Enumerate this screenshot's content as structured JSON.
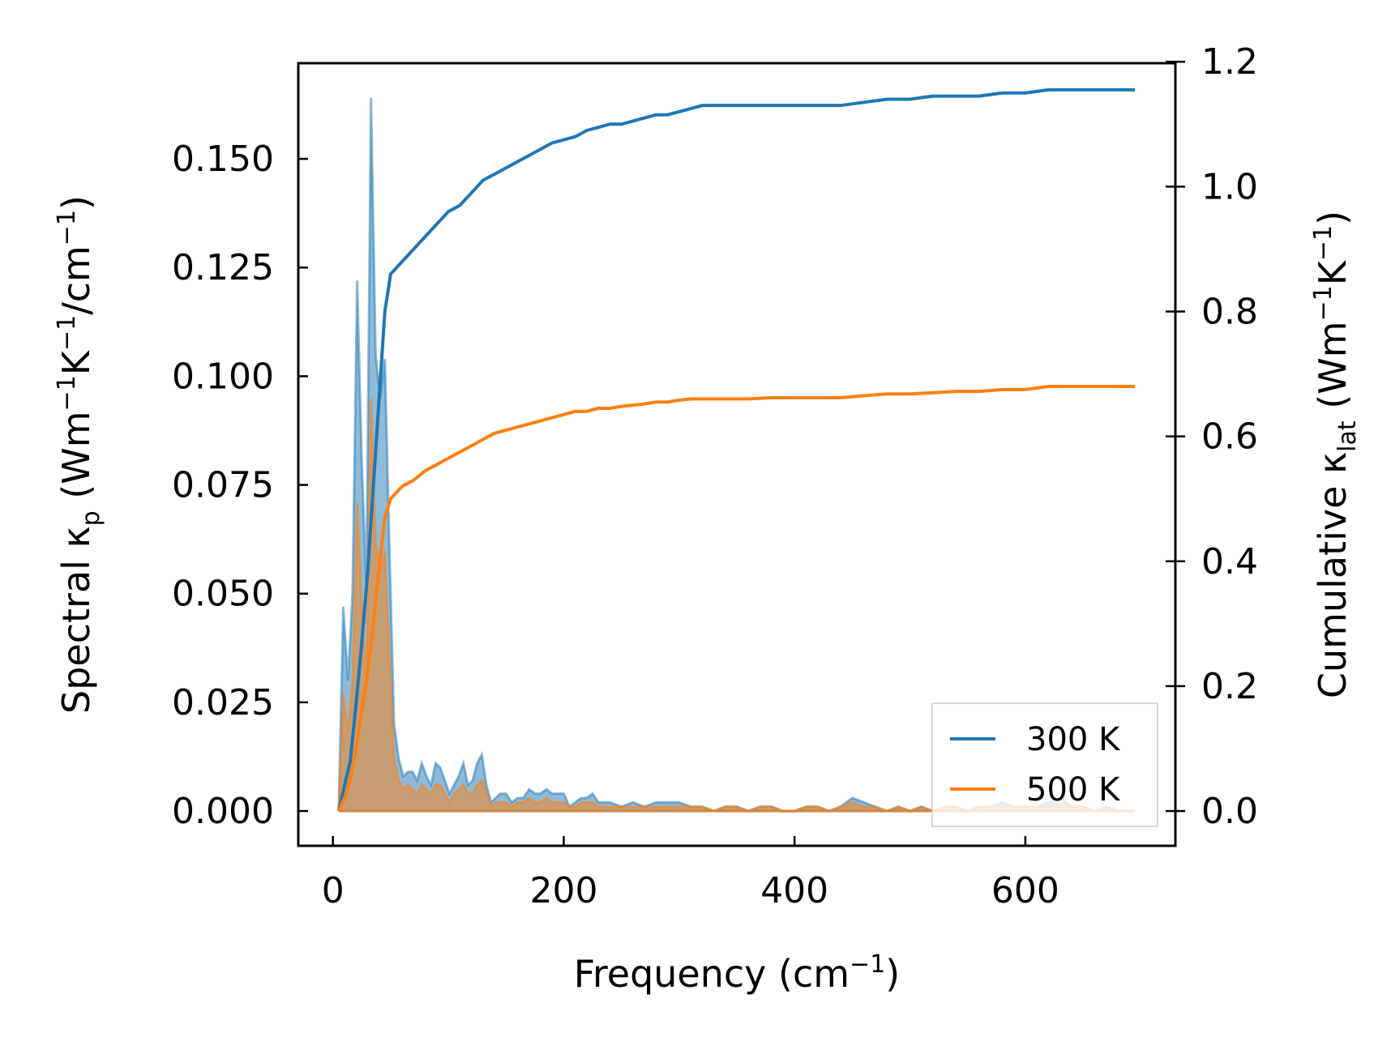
{
  "chart_data": {
    "type": "line",
    "x_label": {
      "pre": "Frequency (cm",
      "sup": "−1",
      "post": ")"
    },
    "y_left_label": {
      "a": "Spectral κ",
      "sub": "p",
      "b": " (Wm",
      "sup1": "−1",
      "c": "K",
      "sup2": "−1",
      "d": "/cm",
      "sup3": "−1",
      "e": ")"
    },
    "y_right_label": {
      "a": "Cumulative κ",
      "sub": "lat",
      "b": " (Wm",
      "sup1": "−1",
      "c": "K",
      "sup2": "−1",
      "d": ")"
    },
    "xlim": [
      -30,
      730
    ],
    "ylim_left": [
      -0.008,
      0.172
    ],
    "ylim_right": [
      -0.0557,
      1.1977
    ],
    "x_ticks": [
      0,
      200,
      400,
      600
    ],
    "x_tick_labels": [
      "0",
      "200",
      "400",
      "600"
    ],
    "y_left_ticks": [
      0.0,
      0.025,
      0.05,
      0.075,
      0.1,
      0.125,
      0.15
    ],
    "y_left_tick_labels": [
      "0.000",
      "0.025",
      "0.050",
      "0.075",
      "0.100",
      "0.125",
      "0.150"
    ],
    "y_right_ticks": [
      0.0,
      0.2,
      0.4,
      0.6,
      0.8,
      1.0,
      1.2
    ],
    "y_right_tick_labels": [
      "0.0",
      "0.2",
      "0.4",
      "0.6",
      "0.8",
      "1.0",
      "1.2"
    ],
    "legend": {
      "position": "lower right",
      "entries": [
        "300 K",
        "500 K"
      ]
    },
    "colors": {
      "s300": "#1f77b4",
      "s500": "#ff7f0e",
      "fill300": "#1f77b4",
      "fill500": "#ff7f0e"
    },
    "series": [
      {
        "name": "300 K",
        "axis": "left",
        "kind": "spectral",
        "x": [
          5,
          9,
          13,
          17,
          21,
          25,
          29,
          33,
          37,
          41,
          45,
          49,
          53,
          57,
          61,
          65,
          69,
          73,
          77,
          81,
          85,
          89,
          93,
          97,
          101,
          105,
          109,
          113,
          117,
          121,
          125,
          129,
          133,
          137,
          141,
          145,
          150,
          155,
          160,
          165,
          170,
          175,
          180,
          185,
          190,
          195,
          200,
          205,
          210,
          215,
          220,
          225,
          230,
          240,
          250,
          260,
          270,
          280,
          290,
          300,
          310,
          320,
          330,
          340,
          350,
          360,
          370,
          380,
          390,
          400,
          410,
          420,
          430,
          440,
          450,
          460,
          470,
          480,
          490,
          500,
          510,
          520,
          530,
          540,
          550,
          560,
          570,
          580,
          590,
          600,
          610,
          620,
          630,
          640,
          650,
          660,
          670,
          680,
          690,
          695
        ],
        "y": [
          0.0,
          0.047,
          0.03,
          0.05,
          0.122,
          0.08,
          0.052,
          0.164,
          0.105,
          0.095,
          0.104,
          0.06,
          0.02,
          0.012,
          0.008,
          0.009,
          0.009,
          0.007,
          0.011,
          0.008,
          0.006,
          0.011,
          0.01,
          0.007,
          0.004,
          0.006,
          0.008,
          0.011,
          0.006,
          0.007,
          0.011,
          0.013,
          0.006,
          0.002,
          0.003,
          0.004,
          0.004,
          0.002,
          0.003,
          0.003,
          0.005,
          0.004,
          0.004,
          0.005,
          0.004,
          0.004,
          0.004,
          0.001,
          0.002,
          0.003,
          0.003,
          0.004,
          0.002,
          0.002,
          0.001,
          0.002,
          0.001,
          0.002,
          0.002,
          0.002,
          0.001,
          0.001,
          0.0,
          0.001,
          0.001,
          0.0,
          0.001,
          0.001,
          0.0,
          0.0,
          0.001,
          0.001,
          0.0,
          0.001,
          0.003,
          0.002,
          0.001,
          0.0,
          0.001,
          0.0,
          0.001,
          0.0,
          0.001,
          0.001,
          0.0,
          0.001,
          0.001,
          0.002,
          0.001,
          0.001,
          0.001,
          0.002,
          0.003,
          0.001,
          0.001,
          0.0,
          0.001,
          0.0,
          0.0,
          0.0
        ]
      },
      {
        "name": "500 K",
        "axis": "left",
        "kind": "spectral",
        "x": [
          5,
          9,
          13,
          17,
          21,
          25,
          29,
          33,
          37,
          41,
          45,
          49,
          53,
          57,
          61,
          65,
          69,
          73,
          77,
          81,
          85,
          89,
          93,
          97,
          101,
          105,
          109,
          113,
          117,
          121,
          125,
          129,
          133,
          137,
          141,
          145,
          150,
          155,
          160,
          165,
          170,
          175,
          180,
          185,
          190,
          195,
          200,
          205,
          210,
          215,
          220,
          225,
          230,
          240,
          250,
          260,
          270,
          280,
          290,
          300,
          310,
          320,
          330,
          340,
          350,
          360,
          370,
          380,
          390,
          400,
          410,
          420,
          430,
          440,
          450,
          460,
          470,
          480,
          490,
          500,
          510,
          520,
          530,
          540,
          550,
          560,
          570,
          580,
          590,
          600,
          610,
          620,
          630,
          640,
          650,
          660,
          670,
          680,
          690,
          695
        ],
        "y": [
          0.0,
          0.027,
          0.018,
          0.03,
          0.071,
          0.047,
          0.03,
          0.095,
          0.062,
          0.055,
          0.06,
          0.035,
          0.012,
          0.007,
          0.005,
          0.006,
          0.005,
          0.004,
          0.006,
          0.005,
          0.004,
          0.006,
          0.006,
          0.004,
          0.002,
          0.004,
          0.005,
          0.006,
          0.004,
          0.004,
          0.006,
          0.007,
          0.004,
          0.001,
          0.002,
          0.002,
          0.002,
          0.001,
          0.002,
          0.002,
          0.003,
          0.002,
          0.002,
          0.003,
          0.002,
          0.002,
          0.002,
          0.001,
          0.001,
          0.002,
          0.002,
          0.002,
          0.001,
          0.001,
          0.001,
          0.001,
          0.001,
          0.001,
          0.001,
          0.001,
          0.001,
          0.001,
          0.0,
          0.001,
          0.001,
          0.0,
          0.001,
          0.001,
          0.0,
          0.0,
          0.001,
          0.001,
          0.0,
          0.001,
          0.002,
          0.001,
          0.001,
          0.0,
          0.001,
          0.0,
          0.001,
          0.0,
          0.001,
          0.001,
          0.0,
          0.001,
          0.001,
          0.001,
          0.001,
          0.001,
          0.001,
          0.001,
          0.002,
          0.001,
          0.001,
          0.0,
          0.001,
          0.0,
          0.0,
          0.0
        ]
      },
      {
        "name": "300 K",
        "axis": "right",
        "kind": "cumulative",
        "x": [
          5,
          10,
          15,
          20,
          25,
          30,
          35,
          40,
          45,
          50,
          55,
          60,
          70,
          80,
          90,
          100,
          110,
          120,
          130,
          140,
          150,
          160,
          170,
          180,
          190,
          200,
          210,
          220,
          230,
          240,
          250,
          260,
          270,
          280,
          290,
          300,
          310,
          320,
          340,
          360,
          380,
          400,
          420,
          440,
          460,
          480,
          500,
          520,
          540,
          560,
          580,
          600,
          620,
          640,
          660,
          680,
          695
        ],
        "y": [
          0.0,
          0.04,
          0.08,
          0.17,
          0.27,
          0.38,
          0.52,
          0.66,
          0.8,
          0.86,
          0.87,
          0.88,
          0.9,
          0.92,
          0.94,
          0.96,
          0.97,
          0.99,
          1.01,
          1.02,
          1.03,
          1.04,
          1.05,
          1.06,
          1.07,
          1.075,
          1.08,
          1.09,
          1.095,
          1.1,
          1.1,
          1.105,
          1.11,
          1.115,
          1.115,
          1.12,
          1.125,
          1.13,
          1.13,
          1.13,
          1.13,
          1.13,
          1.13,
          1.13,
          1.135,
          1.14,
          1.14,
          1.145,
          1.145,
          1.145,
          1.15,
          1.15,
          1.155,
          1.155,
          1.155,
          1.155,
          1.155
        ]
      },
      {
        "name": "500 K",
        "axis": "right",
        "kind": "cumulative",
        "x": [
          5,
          10,
          15,
          20,
          25,
          30,
          35,
          40,
          45,
          50,
          55,
          60,
          70,
          80,
          90,
          100,
          110,
          120,
          130,
          140,
          150,
          160,
          170,
          180,
          190,
          200,
          210,
          220,
          230,
          240,
          250,
          260,
          270,
          280,
          290,
          300,
          310,
          320,
          340,
          360,
          380,
          400,
          420,
          440,
          460,
          480,
          500,
          520,
          540,
          560,
          580,
          600,
          620,
          640,
          660,
          680,
          695
        ],
        "y": [
          0.0,
          0.02,
          0.05,
          0.1,
          0.16,
          0.22,
          0.3,
          0.39,
          0.47,
          0.5,
          0.51,
          0.52,
          0.53,
          0.545,
          0.555,
          0.565,
          0.575,
          0.585,
          0.595,
          0.605,
          0.61,
          0.615,
          0.62,
          0.625,
          0.63,
          0.635,
          0.64,
          0.64,
          0.645,
          0.645,
          0.648,
          0.65,
          0.652,
          0.655,
          0.655,
          0.658,
          0.66,
          0.66,
          0.66,
          0.66,
          0.662,
          0.662,
          0.662,
          0.662,
          0.665,
          0.668,
          0.668,
          0.67,
          0.672,
          0.672,
          0.675,
          0.675,
          0.68,
          0.68,
          0.68,
          0.68,
          0.68
        ]
      }
    ]
  }
}
